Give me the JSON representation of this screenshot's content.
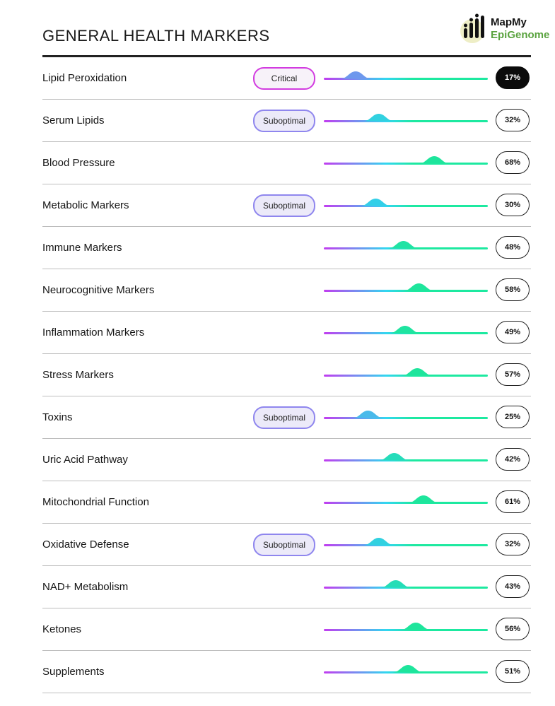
{
  "header": {
    "title": "GENERAL HEALTH MARKERS",
    "logo_line1": "MapMy",
    "logo_line2": "EpiGenome"
  },
  "colors": {
    "gradient_start": "#c23cf0",
    "gradient_mid": "#32d6f0",
    "gradient_end": "#1de9a0",
    "critical_border": "#d23be0",
    "suboptimal_border": "#8f86ee",
    "logo_green": "#5aa33f"
  },
  "markers": [
    {
      "name": "Lipid Peroxidation",
      "badge": "Critical",
      "badge_type": "critical",
      "value": 17,
      "value_label": "17%",
      "highlight": true
    },
    {
      "name": "Serum Lipids",
      "badge": "Suboptimal",
      "badge_type": "suboptimal",
      "value": 32,
      "value_label": "32%"
    },
    {
      "name": "Blood Pressure",
      "badge": "",
      "badge_type": "",
      "value": 68,
      "value_label": "68%"
    },
    {
      "name": "Metabolic Markers",
      "badge": "Suboptimal",
      "badge_type": "suboptimal",
      "value": 30,
      "value_label": "30%"
    },
    {
      "name": "Immune Markers",
      "badge": "",
      "badge_type": "",
      "value": 48,
      "value_label": "48%"
    },
    {
      "name": "Neurocognitive Markers",
      "badge": "",
      "badge_type": "",
      "value": 58,
      "value_label": "58%"
    },
    {
      "name": "Inflammation Markers",
      "badge": "",
      "badge_type": "",
      "value": 49,
      "value_label": "49%"
    },
    {
      "name": "Stress Markers",
      "badge": "",
      "badge_type": "",
      "value": 57,
      "value_label": "57%"
    },
    {
      "name": "Toxins",
      "badge": "Suboptimal",
      "badge_type": "suboptimal",
      "value": 25,
      "value_label": "25%"
    },
    {
      "name": "Uric Acid Pathway",
      "badge": "",
      "badge_type": "",
      "value": 42,
      "value_label": "42%"
    },
    {
      "name": "Mitochondrial Function",
      "badge": "",
      "badge_type": "",
      "value": 61,
      "value_label": "61%"
    },
    {
      "name": "Oxidative Defense",
      "badge": "Suboptimal",
      "badge_type": "suboptimal",
      "value": 32,
      "value_label": "32%"
    },
    {
      "name": "NAD+ Metabolism",
      "badge": "",
      "badge_type": "",
      "value": 43,
      "value_label": "43%"
    },
    {
      "name": "Ketones",
      "badge": "",
      "badge_type": "",
      "value": 56,
      "value_label": "56%"
    },
    {
      "name": "Supplements",
      "badge": "",
      "badge_type": "",
      "value": 51,
      "value_label": "51%"
    }
  ]
}
